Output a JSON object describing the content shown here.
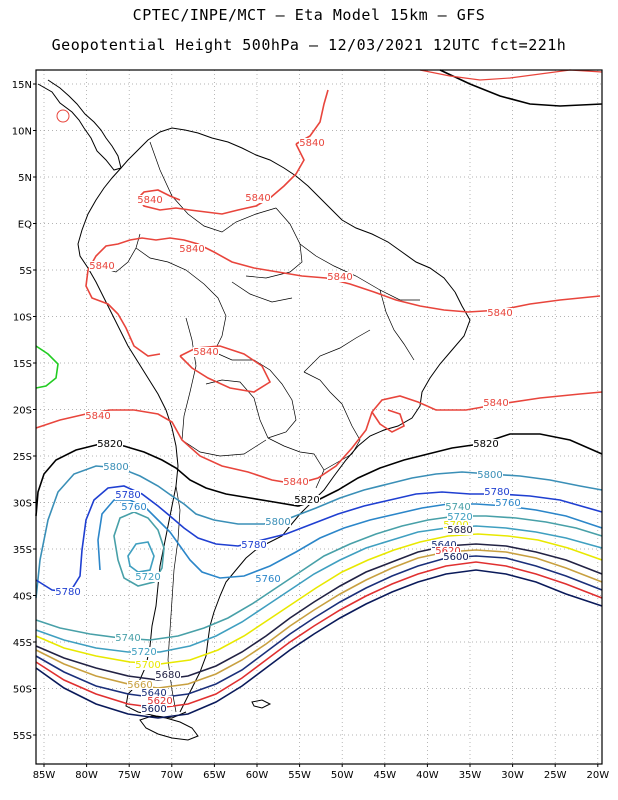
{
  "title_line1": "CPTEC/INPE/MCT —  Eta Model 15km — GFS",
  "title_line2": "Geopotential Height 500hPa — 12/03/2021 12UTC fct=221h",
  "lat_labels": [
    "15N",
    "10N",
    "5N",
    "EQ",
    "5S",
    "10S",
    "15S",
    "20S",
    "25S",
    "30S",
    "35S",
    "40S",
    "45S",
    "50S",
    "55S"
  ],
  "lon_labels": [
    "85W",
    "80W",
    "75W",
    "70W",
    "65W",
    "60W",
    "55W",
    "50W",
    "45W",
    "40W",
    "35W",
    "30W",
    "25W",
    "20W"
  ],
  "contours": {
    "c5840": {
      "label": "5840",
      "color": "#e8453c"
    },
    "c5820": {
      "label": "5820",
      "color": "#000000"
    },
    "c5800": {
      "label": "5800",
      "color": "#3a8fb7"
    },
    "c5780": {
      "label": "5780",
      "color": "#1f3fd1"
    },
    "c5760": {
      "label": "5760",
      "color": "#2b86c9"
    },
    "c5740": {
      "label": "5740",
      "color": "#48a0a8"
    },
    "c5720": {
      "label": "5720",
      "color": "#3f9fc0"
    },
    "c5700": {
      "label": "5700",
      "color": "#e8e800"
    },
    "c5680": {
      "label": "5680",
      "color": "#222244"
    },
    "c5660": {
      "label": "5660",
      "color": "#c8a040"
    },
    "c5640": {
      "label": "5640",
      "color": "#1a2f7a"
    },
    "c5620": {
      "label": "5620",
      "color": "#e03030"
    },
    "c5600": {
      "label": "5600",
      "color": "#0a1a5a"
    }
  },
  "land_color": "#000000",
  "border_color": "#000000"
}
